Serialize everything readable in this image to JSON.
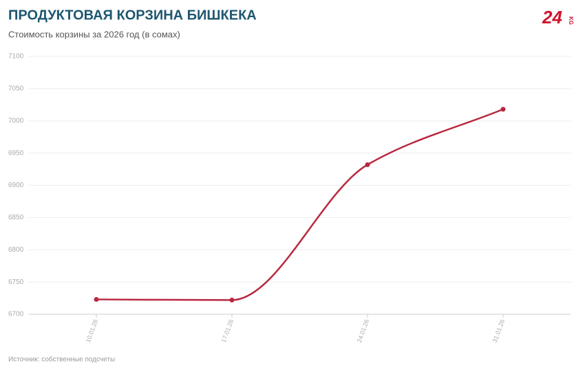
{
  "chart_data": {
    "type": "line",
    "title": "ПРОДУКТОВАЯ КОРЗИНА БИШКЕКА",
    "subtitle": "Стоимость корзины за 2026 год (в сомах)",
    "source": "Источник: собственные подсчеты",
    "logo": "24",
    "logo_suffix": "KG",
    "categories": [
      "10.01.26",
      "17.01.26",
      "24.01.26",
      "31.01.26"
    ],
    "values": [
      6723,
      6722,
      6932,
      7018
    ],
    "color": "#b8283f",
    "ylim": [
      6700,
      7100
    ],
    "yticks": [
      6700,
      6750,
      6800,
      6850,
      6900,
      6950,
      7000,
      7050,
      7100
    ],
    "grid": true
  }
}
